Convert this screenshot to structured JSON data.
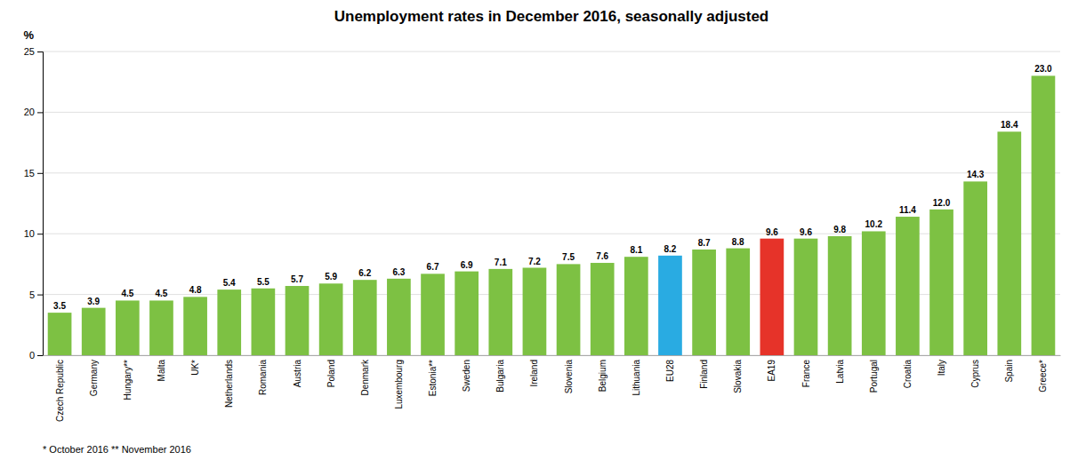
{
  "chart_data": {
    "type": "bar",
    "title": "Unemployment rates in December 2016, seasonally adjusted",
    "y_label": "%",
    "categories": [
      "Czech Republic",
      "Germany",
      "Hungary**",
      "Malta",
      "UK*",
      "Netherlands",
      "Romania",
      "Austria",
      "Poland",
      "Denmark",
      "Luxembourg",
      "Estonia**",
      "Sweden",
      "Bulgaria",
      "Ireland",
      "Slovenia",
      "Belgium",
      "Lithuania",
      "EU28",
      "Finland",
      "Slovakia",
      "EA19",
      "France",
      "Latvia",
      "Portugal",
      "Croatia",
      "Italy",
      "Cyprus",
      "Spain",
      "Greece*"
    ],
    "values": [
      3.5,
      3.9,
      4.5,
      4.5,
      4.8,
      5.4,
      5.5,
      5.7,
      5.9,
      6.2,
      6.3,
      6.7,
      6.9,
      7.1,
      7.2,
      7.5,
      7.6,
      8.1,
      8.2,
      8.7,
      8.8,
      9.6,
      9.6,
      9.8,
      10.2,
      11.4,
      12.0,
      14.3,
      18.4,
      23.0
    ],
    "value_labels": [
      "3.5",
      "3.9",
      "4.5",
      "4.5",
      "4.8",
      "5.4",
      "5.5",
      "5.7",
      "5.9",
      "6.2",
      "6.3",
      "6.7",
      "6.9",
      "7.1",
      "7.2",
      "7.5",
      "7.6",
      "8.1",
      "8.2",
      "8.7",
      "8.8",
      "9.6",
      "9.6",
      "9.8",
      "10.2",
      "11.4",
      "12.0",
      "14.3",
      "18.4",
      "23.0"
    ],
    "colors": [
      "#7dc143",
      "#7dc143",
      "#7dc143",
      "#7dc143",
      "#7dc143",
      "#7dc143",
      "#7dc143",
      "#7dc143",
      "#7dc143",
      "#7dc143",
      "#7dc143",
      "#7dc143",
      "#7dc143",
      "#7dc143",
      "#7dc143",
      "#7dc143",
      "#7dc143",
      "#7dc143",
      "#29abe2",
      "#7dc143",
      "#7dc143",
      "#e63329",
      "#7dc143",
      "#7dc143",
      "#7dc143",
      "#7dc143",
      "#7dc143",
      "#7dc143",
      "#7dc143",
      "#7dc143"
    ],
    "ylim": [
      0,
      25
    ],
    "yticks": [
      0,
      5,
      10,
      15,
      20,
      25
    ],
    "grid": true,
    "data_labels": true,
    "annotations": [
      "* October 2016   ** November 2016"
    ]
  }
}
